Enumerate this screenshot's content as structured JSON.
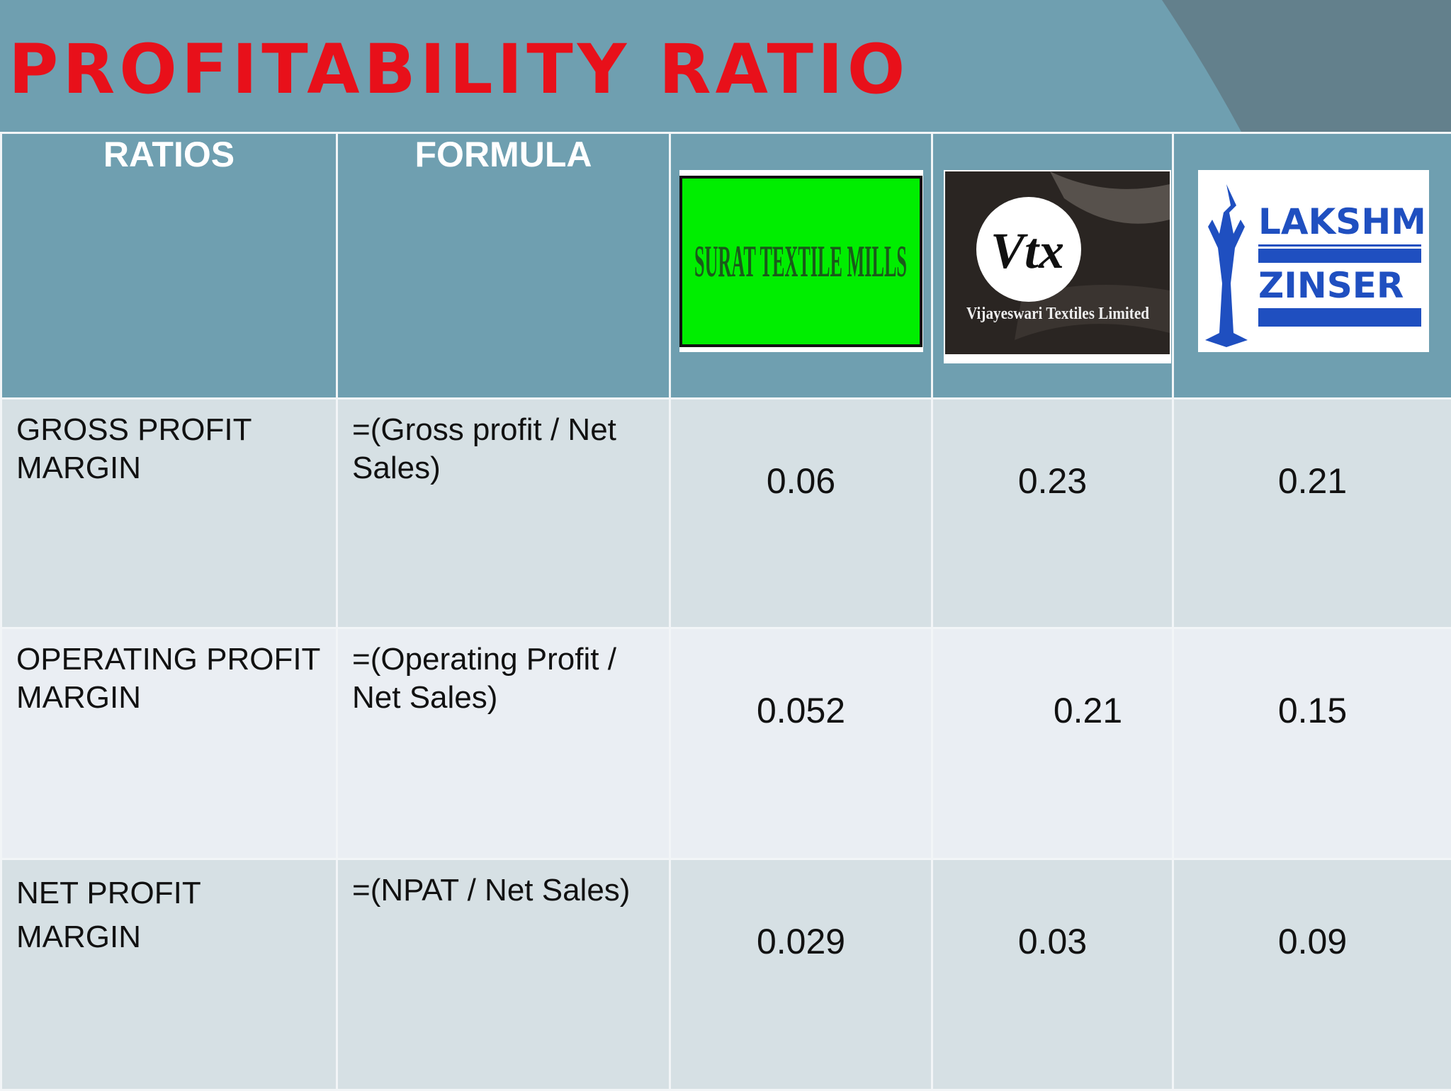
{
  "slide": {
    "title": "PROFITABILITY RATIO"
  },
  "table": {
    "headers": {
      "ratios": "RATIOS",
      "formula": "FORMULA"
    },
    "companies": [
      {
        "logo_text": "SURAT TEXTILE MILLS",
        "logo_colors": {
          "background": "#00ee00",
          "text": "#1a5a1a"
        }
      },
      {
        "logo_text": "Vtx",
        "logo_subtext": "Vijayeswari Textiles Limited",
        "logo_colors": {
          "background": "#2a2522",
          "text": "#ffffff"
        }
      },
      {
        "logo_text_line1": "LAKSHMI",
        "logo_text_line2": "ZINSER",
        "logo_colors": {
          "background": "#ffffff",
          "text": "#1f4fc0"
        }
      }
    ],
    "rows": [
      {
        "ratio": "GROSS PROFIT MARGIN",
        "formula": "=(Gross profit / Net Sales)",
        "values": [
          "0.06",
          "0.23",
          "0.21"
        ]
      },
      {
        "ratio": "OPERATING PROFIT MARGIN",
        "formula": "=(Operating Profit / Net Sales)",
        "values": [
          "0.052",
          "0.21",
          "0.15"
        ]
      },
      {
        "ratio": "NET PROFIT MARGIN",
        "formula": "=(NPAT / Net Sales)",
        "values": [
          "0.029",
          "0.03",
          "0.09"
        ]
      }
    ]
  }
}
